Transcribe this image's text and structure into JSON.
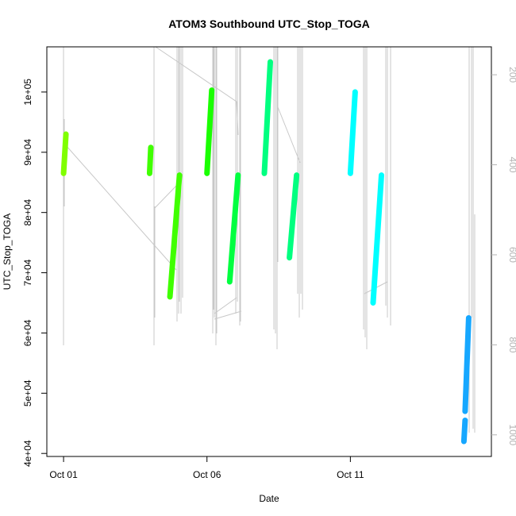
{
  "chart_data": {
    "type": "scatter",
    "title": "ATOM3 Southbound UTC_Stop_TOGA",
    "xlabel": "Date",
    "ylabel": "UTC_Stop_TOGA",
    "xlim": [
      "2016-09-30T10:00",
      "2016-10-15T22:00"
    ],
    "ylim": [
      39500,
      107500
    ],
    "x_ticks": [
      {
        "date": "2016-10-01",
        "label": "Oct 01"
      },
      {
        "date": "2016-10-06",
        "label": "Oct 06"
      },
      {
        "date": "2016-10-11",
        "label": "Oct 11"
      }
    ],
    "y_ticks": [
      {
        "value": 40000,
        "label": "4e+04"
      },
      {
        "value": 50000,
        "label": "5e+04"
      },
      {
        "value": 60000,
        "label": "6e+04"
      },
      {
        "value": 70000,
        "label": "7e+04"
      },
      {
        "value": 80000,
        "label": "8e+04"
      },
      {
        "value": 90000,
        "label": "9e+04"
      },
      {
        "value": 100000,
        "label": "1e+05"
      }
    ],
    "y2_ticks": [
      {
        "value": 200,
        "label": "200"
      },
      {
        "value": 400,
        "label": "400"
      },
      {
        "value": 600,
        "label": "600"
      },
      {
        "value": 800,
        "label": "800"
      },
      {
        "value": 1000,
        "label": "1000"
      }
    ],
    "y2lim": [
      1048,
      138
    ],
    "series": [
      {
        "x": [
          "2016-10-01T00:00",
          "2016-10-01T02:00"
        ],
        "y": [
          86500,
          93000
        ],
        "color": "#80ff00"
      },
      {
        "x": [
          "2016-10-04T00:00",
          "2016-10-04T01:00"
        ],
        "y": [
          86500,
          90800
        ],
        "color": "#40ff00"
      },
      {
        "x": [
          "2016-10-04T17:00",
          "2016-10-05T01:00"
        ],
        "y": [
          66000,
          86200
        ],
        "color": "#40ff00"
      },
      {
        "x": [
          "2016-10-06T00:00",
          "2016-10-06T04:00"
        ],
        "y": [
          86500,
          100300
        ],
        "color": "#1aff00"
      },
      {
        "x": [
          "2016-10-06T19:00",
          "2016-10-07T02:00"
        ],
        "y": [
          68500,
          86200
        ],
        "color": "#00ff40"
      },
      {
        "x": [
          "2016-10-08T00:00",
          "2016-10-08T05:00"
        ],
        "y": [
          86500,
          105000
        ],
        "color": "#00ff80"
      },
      {
        "x": [
          "2016-10-08T21:00",
          "2016-10-09T03:00"
        ],
        "y": [
          72500,
          86200
        ],
        "color": "#00ff80"
      },
      {
        "x": [
          "2016-10-11T00:00",
          "2016-10-11T04:00"
        ],
        "y": [
          86500,
          100000
        ],
        "color": "#00ffff"
      },
      {
        "x": [
          "2016-10-11T19:00",
          "2016-10-12T02:00"
        ],
        "y": [
          65000,
          86200
        ],
        "color": "#00ffff"
      },
      {
        "x": [
          "2016-10-15T00:00",
          "2016-10-15T03:00"
        ],
        "y": [
          47000,
          62500
        ],
        "color": "#16a7ff"
      },
      {
        "x": [
          "2016-10-14T23:00",
          "2016-10-15T00:00"
        ],
        "y": [
          42000,
          45500
        ],
        "color": "#16a7ff"
      }
    ]
  }
}
